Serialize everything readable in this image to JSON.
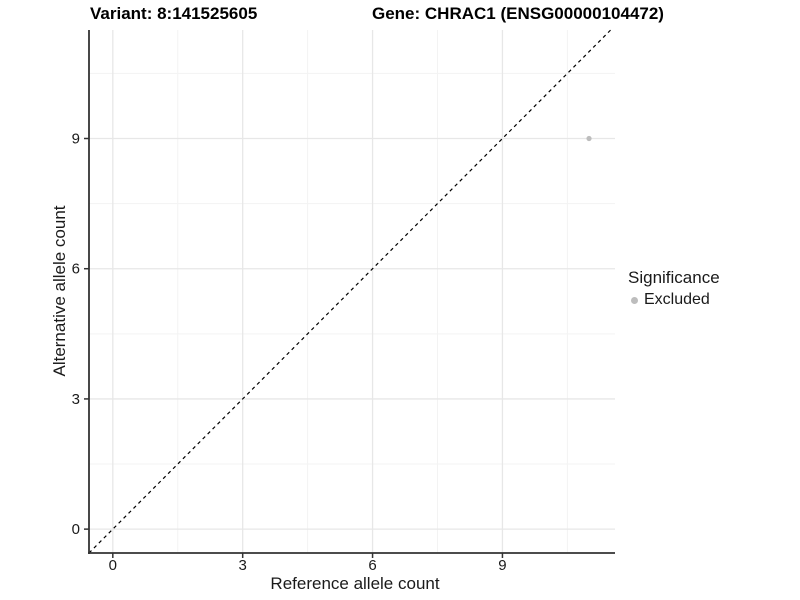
{
  "header": {
    "title_left": "Variant: 8:141525605",
    "title_right": "Gene: CHRAC1 (ENSG00000104472)"
  },
  "axes": {
    "x_label": "Reference allele count",
    "y_label": "Alternative allele count"
  },
  "legend": {
    "title": "Significance",
    "items": [
      {
        "label": "Excluded",
        "color": "#bdbdbd",
        "marker": "dot"
      }
    ]
  },
  "colors": {
    "background": "#ffffff",
    "axis_line": "#333333",
    "tick_label": "#1a1a1a",
    "grid_major": "#e7e7e7",
    "grid_minor": "#f3f3f3",
    "excluded_point": "#bdbdbd",
    "reference_line": "#000000"
  },
  "chart_data": {
    "type": "scatter",
    "title": "Variant: 8:141525605 | Gene: CHRAC1 (ENSG00000104472)",
    "xlabel": "Reference allele count",
    "ylabel": "Alternative allele count",
    "xlim": [
      -0.55,
      11.6
    ],
    "ylim": [
      -0.55,
      11.5
    ],
    "xticks": [
      0,
      3,
      6,
      9
    ],
    "yticks": [
      0,
      3,
      6,
      9
    ],
    "minor_xticks": [
      1.5,
      4.5,
      7.5,
      10.5
    ],
    "minor_yticks": [
      1.5,
      4.5,
      7.5,
      10.5
    ],
    "grid": "major+minor",
    "legend_position": "right",
    "series": [
      {
        "name": "Excluded",
        "color": "#bdbdbd",
        "marker": "circle",
        "points": [
          {
            "x": 11,
            "y": 9
          }
        ]
      }
    ],
    "reference_line": {
      "style": "dashed",
      "color": "#000000",
      "slope": 1,
      "intercept": 0,
      "description": "y = x identity line"
    }
  }
}
